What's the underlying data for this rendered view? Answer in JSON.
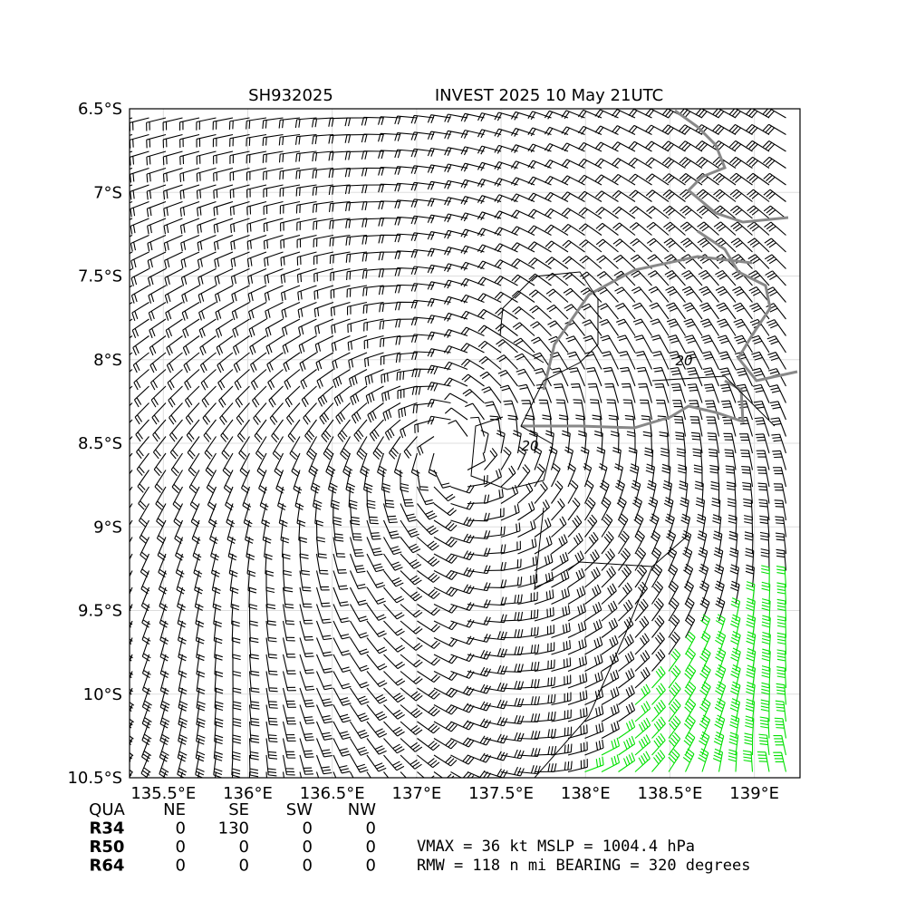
{
  "map": {
    "title_left": "SH932025",
    "title_right": "INVEST 2025 10 May 21UTC",
    "xlim": [
      135.3,
      139.27
    ],
    "ylim": [
      -10.5,
      -6.5
    ],
    "lon_ticks": [
      {
        "value": 135.5,
        "label": "135.5°E"
      },
      {
        "value": 136,
        "label": "136°E"
      },
      {
        "value": 136.5,
        "label": "136.5°E"
      },
      {
        "value": 137,
        "label": "137°E"
      },
      {
        "value": 137.5,
        "label": "137.5°E"
      },
      {
        "value": 138,
        "label": "138°E"
      },
      {
        "value": 138.5,
        "label": "138.5°E"
      },
      {
        "value": 139,
        "label": "139°E"
      }
    ],
    "lat_ticks": [
      {
        "value": -6.5,
        "label": "6.5°S"
      },
      {
        "value": -7,
        "label": "7°S"
      },
      {
        "value": -7.5,
        "label": "7.5°S"
      },
      {
        "value": -8,
        "label": "8°S"
      },
      {
        "value": -8.5,
        "label": "8.5°S"
      },
      {
        "value": -9,
        "label": "9°S"
      },
      {
        "value": -9.5,
        "label": "9.5°S"
      },
      {
        "value": -10,
        "label": "10°S"
      },
      {
        "value": -10.5,
        "label": "10.5°S"
      }
    ],
    "contour_labels": [
      "20",
      "20"
    ],
    "table": {
      "header": [
        "QUA",
        "NE",
        "SE",
        "SW",
        "NW"
      ],
      "rows": [
        [
          "R34",
          "0",
          "130",
          "0",
          "0"
        ],
        [
          "R50",
          "0",
          "0",
          "0",
          "0"
        ],
        [
          "R64",
          "0",
          "0",
          "0",
          "0"
        ]
      ]
    },
    "stats": [
      "VMAX =  36 kt MSLP = 1004.4 hPa",
      "RMW = 118 n mi BEARING = 320 degrees"
    ]
  }
}
